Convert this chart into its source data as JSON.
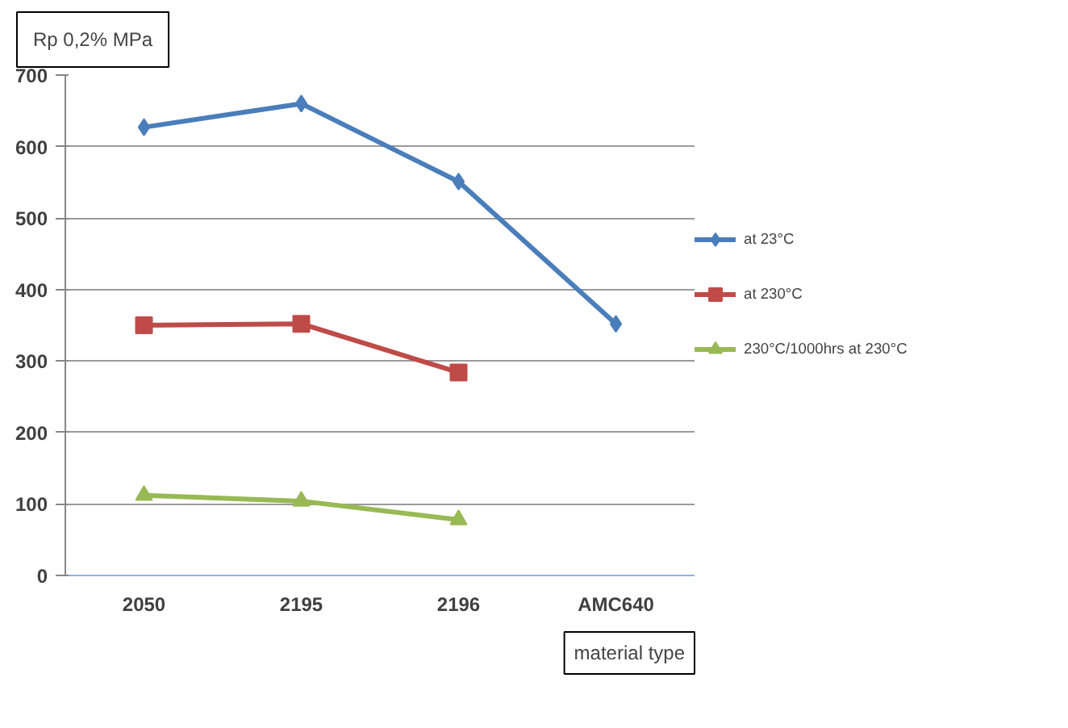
{
  "chart_data": {
    "type": "line",
    "ylabel": "Rp 0,2% MPa",
    "xlabel": "material type",
    "categories": [
      "2050",
      "2195",
      "2196",
      "AMC640"
    ],
    "series": [
      {
        "name": "at 23°C",
        "color": "#4a7ebb",
        "marker": "diamond",
        "values": [
          627,
          660,
          551,
          352
        ]
      },
      {
        "name": "at 230°C",
        "color": "#be4b48",
        "marker": "square",
        "values": [
          350,
          352,
          284,
          null
        ]
      },
      {
        "name": "230°C/1000hrs at 230°C",
        "color": "#98b954",
        "marker": "triangle",
        "values": [
          112,
          104,
          78,
          null
        ]
      }
    ],
    "ylim": [
      0,
      700
    ],
    "yticks": [
      0,
      100,
      200,
      300,
      400,
      500,
      600,
      700
    ],
    "grid": "y",
    "legend": "right"
  }
}
